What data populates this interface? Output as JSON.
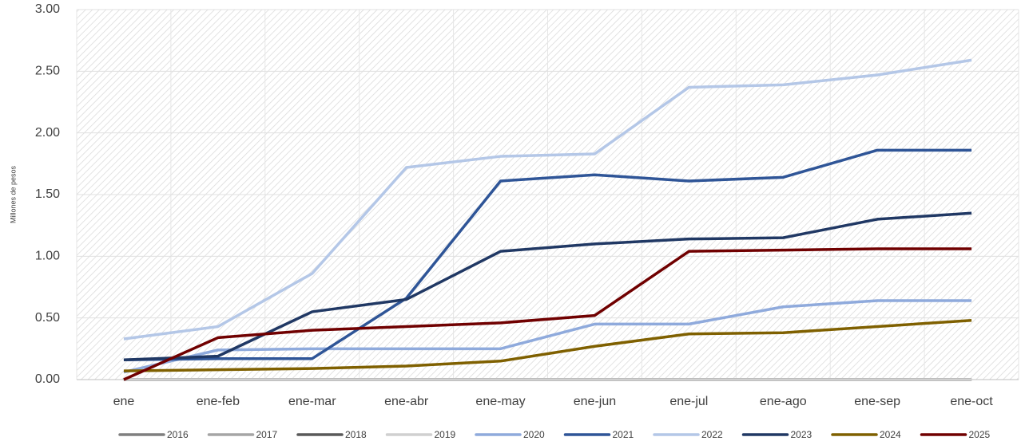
{
  "chart_data": {
    "type": "line",
    "y_label": "Millones de pesos",
    "categories": [
      "ene",
      "ene-feb",
      "ene-mar",
      "ene-abr",
      "ene-may",
      "ene-jun",
      "ene-jul",
      "ene-ago",
      "ene-sep",
      "ene-oct"
    ],
    "ylim": [
      0,
      3
    ],
    "yticks": [
      {
        "value": 0,
        "label": "0.00"
      },
      {
        "value": 0.5,
        "label": "0.50"
      },
      {
        "value": 1,
        "label": "1.00"
      },
      {
        "value": 1.5,
        "label": "1.50"
      },
      {
        "value": 2,
        "label": "2.00"
      },
      {
        "value": 2.5,
        "label": "2.50"
      },
      {
        "value": 3,
        "label": "3.00"
      }
    ],
    "grid": true,
    "legend": "bottom",
    "series": [
      {
        "name": "2016",
        "color": "#7f7f7f",
        "values": [
          0,
          0,
          0,
          0,
          0,
          0,
          0,
          0,
          0,
          0
        ]
      },
      {
        "name": "2017",
        "color": "#a5a5a5",
        "values": [
          0,
          0,
          0,
          0,
          0,
          0,
          0,
          0,
          0,
          0
        ]
      },
      {
        "name": "2018",
        "color": "#595959",
        "values": [
          0,
          0,
          0,
          0,
          0,
          0,
          0,
          0,
          0,
          0
        ]
      },
      {
        "name": "2019",
        "color": "#d0d0d0",
        "values": [
          0,
          0,
          0,
          0,
          0,
          0,
          0,
          0,
          0,
          0
        ]
      },
      {
        "name": "2020",
        "color": "#8faadc",
        "values": [
          0.06,
          0.24,
          0.25,
          0.25,
          0.25,
          0.45,
          0.45,
          0.59,
          0.64,
          0.64
        ]
      },
      {
        "name": "2021",
        "color": "#2f5597",
        "values": [
          0.16,
          0.17,
          0.17,
          0.66,
          1.61,
          1.66,
          1.61,
          1.64,
          1.86,
          1.86
        ]
      },
      {
        "name": "2022",
        "color": "#b4c7e7",
        "values": [
          0.33,
          0.43,
          0.86,
          1.72,
          1.81,
          1.83,
          2.37,
          2.39,
          2.47,
          2.59
        ]
      },
      {
        "name": "2023",
        "color": "#203864",
        "values": [
          0.16,
          0.19,
          0.55,
          0.65,
          1.04,
          1.1,
          1.14,
          1.15,
          1.3,
          1.35
        ]
      },
      {
        "name": "2024",
        "color": "#7f6000",
        "values": [
          0.07,
          0.08,
          0.09,
          0.11,
          0.15,
          0.27,
          0.37,
          0.38,
          0.43,
          0.48
        ]
      },
      {
        "name": "2025",
        "color": "#700000",
        "values": [
          0.0,
          0.34,
          0.4,
          0.43,
          0.46,
          0.52,
          1.04,
          1.05,
          1.06,
          1.06
        ]
      }
    ]
  }
}
